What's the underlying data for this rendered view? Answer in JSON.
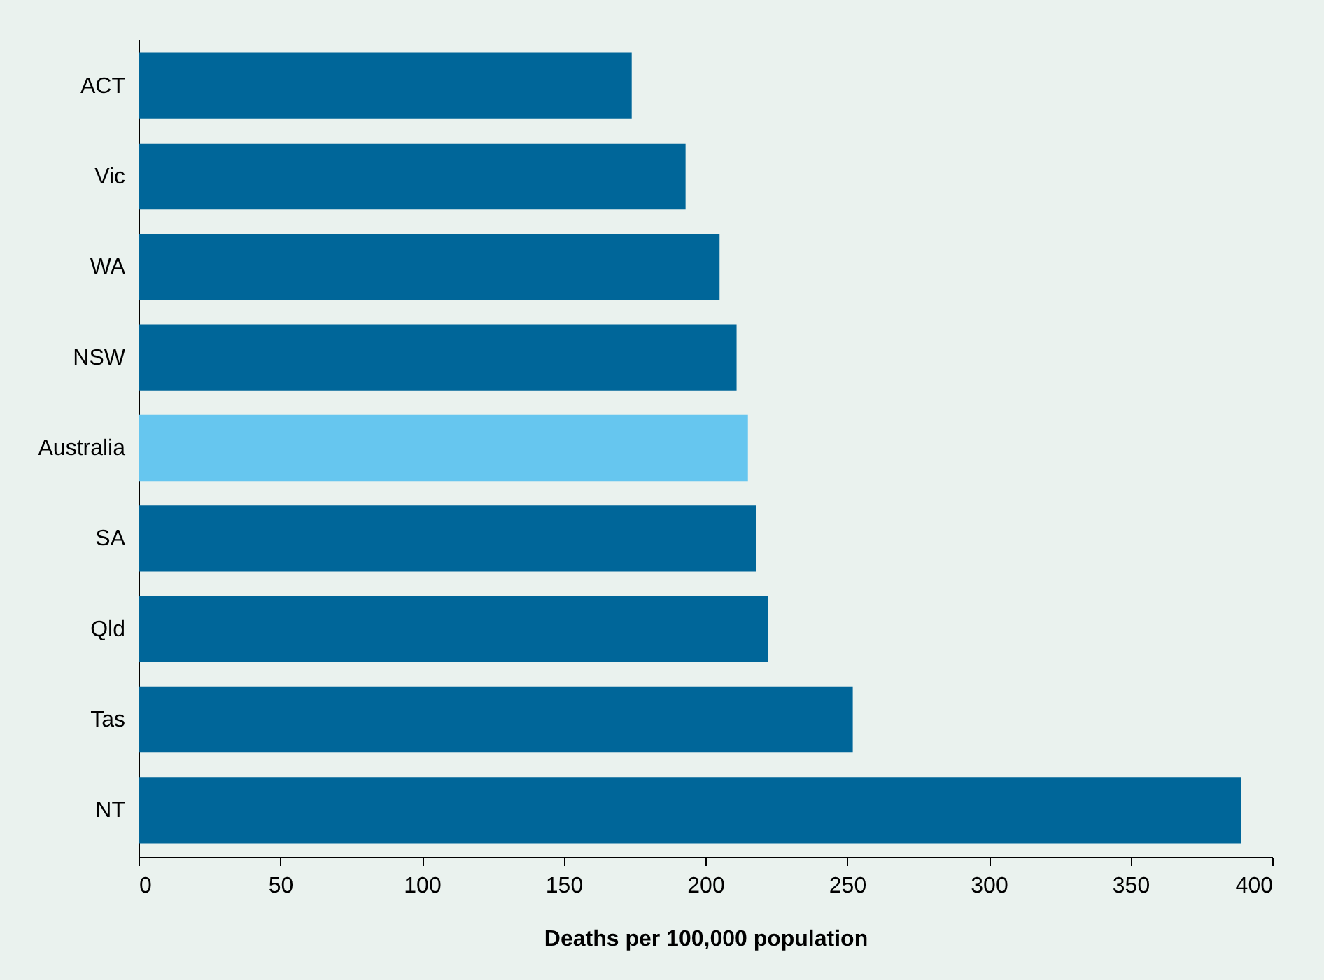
{
  "chart_data": {
    "type": "bar",
    "orientation": "horizontal",
    "xlabel": "Deaths per 100,000 population",
    "categories": [
      "ACT",
      "Vic",
      "WA",
      "NSW",
      "Australia",
      "SA",
      "Qld",
      "Tas",
      "NT"
    ],
    "values": [
      174,
      193,
      205,
      211,
      215,
      218,
      222,
      252,
      389
    ],
    "colors": [
      "#006699",
      "#006699",
      "#006699",
      "#006699",
      "#66c6ef",
      "#006699",
      "#006699",
      "#006699",
      "#006699"
    ],
    "xlim": [
      0,
      400
    ],
    "xticks": [
      0,
      50,
      100,
      150,
      200,
      250,
      300,
      350,
      400
    ]
  }
}
